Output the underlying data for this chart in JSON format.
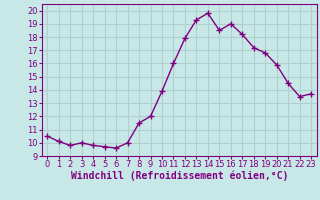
{
  "x": [
    0,
    1,
    2,
    3,
    4,
    5,
    6,
    7,
    8,
    9,
    10,
    11,
    12,
    13,
    14,
    15,
    16,
    17,
    18,
    19,
    20,
    21,
    22,
    23
  ],
  "y": [
    10.5,
    10.1,
    9.8,
    10.0,
    9.8,
    9.7,
    9.6,
    10.0,
    11.5,
    12.0,
    13.9,
    16.0,
    17.9,
    19.3,
    19.8,
    18.5,
    19.0,
    18.2,
    17.2,
    16.8,
    15.9,
    14.5,
    13.5,
    13.7
  ],
  "line_color": "#800080",
  "marker": "+",
  "markersize": 4,
  "linewidth": 1,
  "xlabel": "Windchill (Refroidissement éolien,°C)",
  "xlabel_fontsize": 7,
  "ylim": [
    9,
    20.5
  ],
  "xlim": [
    -0.5,
    23.5
  ],
  "yticks": [
    9,
    10,
    11,
    12,
    13,
    14,
    15,
    16,
    17,
    18,
    19,
    20
  ],
  "xticks": [
    0,
    1,
    2,
    3,
    4,
    5,
    6,
    7,
    8,
    9,
    10,
    11,
    12,
    13,
    14,
    15,
    16,
    17,
    18,
    19,
    20,
    21,
    22,
    23
  ],
  "bg_color": "#c8e8e8",
  "grid_color": "#b0d0d0",
  "tick_fontsize": 6,
  "spine_color": "#800080"
}
